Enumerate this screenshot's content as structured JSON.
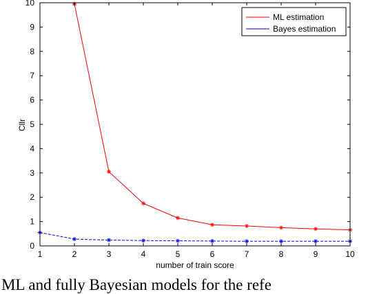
{
  "chart_data": {
    "type": "line",
    "xlabel": "number of train score",
    "ylabel": "Cllr",
    "xlim": [
      1,
      10
    ],
    "ylim": [
      0,
      10
    ],
    "x_ticks": [
      "1",
      "2",
      "3",
      "4",
      "5",
      "6",
      "7",
      "8",
      "9",
      "10"
    ],
    "y_ticks": [
      "0",
      "1",
      "2",
      "3",
      "4",
      "5",
      "6",
      "7",
      "8",
      "9",
      "10"
    ],
    "grid": false,
    "legend_position": "top-right",
    "series": [
      {
        "name": "ML estimation",
        "color": "#ff0000",
        "x": [
          2,
          3,
          4,
          5,
          6,
          7,
          8,
          9,
          10
        ],
        "values": [
          9.95,
          3.05,
          1.75,
          1.15,
          0.87,
          0.82,
          0.75,
          0.7,
          0.66
        ]
      },
      {
        "name": "Bayes estimation",
        "color": "#0000ff",
        "x": [
          1,
          2,
          3,
          4,
          5,
          6,
          7,
          8,
          9,
          10
        ],
        "values": [
          0.55,
          0.28,
          0.24,
          0.22,
          0.21,
          0.2,
          0.19,
          0.19,
          0.19,
          0.19
        ]
      }
    ]
  },
  "caption": "e ML and fully Bayesian models for the refe"
}
